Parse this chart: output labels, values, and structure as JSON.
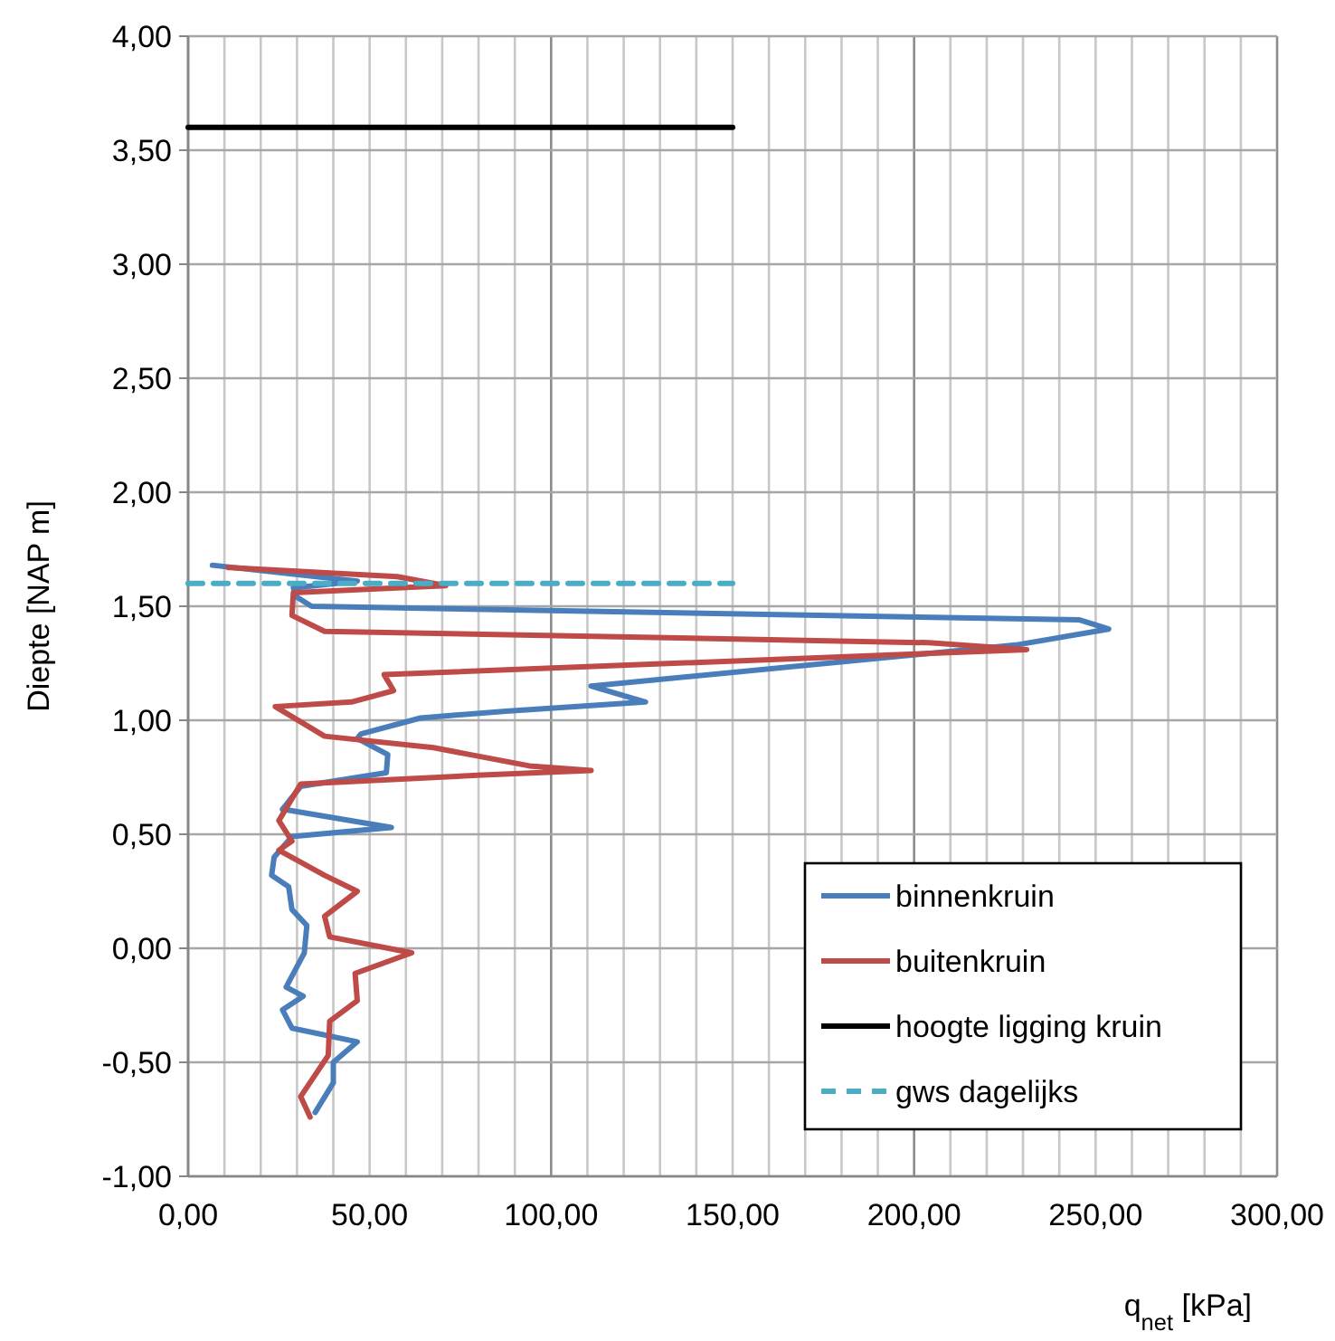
{
  "chart_data": {
    "type": "line",
    "xlabel": "q$_{net}$  [kPa]",
    "ylabel": "Diepte [NAP  m]",
    "xlim": [
      0,
      300
    ],
    "ylim": [
      -1,
      4
    ],
    "xticks": [
      {
        "value": 0,
        "label": "0,00"
      },
      {
        "value": 10,
        "label": null
      },
      {
        "value": 20,
        "label": null
      },
      {
        "value": 30,
        "label": null
      },
      {
        "value": 40,
        "label": null
      },
      {
        "value": 50,
        "label": "50,00"
      },
      {
        "value": 60,
        "label": null
      },
      {
        "value": 70,
        "label": null
      },
      {
        "value": 80,
        "label": null
      },
      {
        "value": 90,
        "label": null
      },
      {
        "value": 100,
        "label": "100,00"
      },
      {
        "value": 110,
        "label": null
      },
      {
        "value": 120,
        "label": null
      },
      {
        "value": 130,
        "label": null
      },
      {
        "value": 140,
        "label": null
      },
      {
        "value": 150,
        "label": "150,00"
      },
      {
        "value": 160,
        "label": null
      },
      {
        "value": 170,
        "label": null
      },
      {
        "value": 180,
        "label": null
      },
      {
        "value": 190,
        "label": null
      },
      {
        "value": 200,
        "label": "200,00"
      },
      {
        "value": 210,
        "label": null
      },
      {
        "value": 220,
        "label": null
      },
      {
        "value": 230,
        "label": null
      },
      {
        "value": 240,
        "label": null
      },
      {
        "value": 250,
        "label": "250,00"
      },
      {
        "value": 260,
        "label": null
      },
      {
        "value": 270,
        "label": null
      },
      {
        "value": 280,
        "label": null
      },
      {
        "value": 290,
        "label": null
      },
      {
        "value": 300,
        "label": "300,00"
      }
    ],
    "yticks": [
      {
        "value": -1,
        "label": "-1,00"
      },
      {
        "value": -0.5,
        "label": "-0,50"
      },
      {
        "value": 0,
        "label": "0,00"
      },
      {
        "value": 0.5,
        "label": "0,50"
      },
      {
        "value": 1,
        "label": "1,00"
      },
      {
        "value": 1.5,
        "label": "1,50"
      },
      {
        "value": 2,
        "label": "2,00"
      },
      {
        "value": 2.5,
        "label": "2,50"
      },
      {
        "value": 3,
        "label": "3,00"
      },
      {
        "value": 3.5,
        "label": "3,50"
      },
      {
        "value": 4,
        "label": "4,00"
      }
    ],
    "grid": true,
    "legend": "bottom right",
    "series": [
      {
        "name": "binnenkruin",
        "color": "#4a7ebb",
        "x": [
          6.7,
          46.6,
          29,
          30,
          34,
          245.6,
          253.6,
          228,
          111,
          126,
          87.5,
          64,
          47.6,
          46.6,
          55,
          54.6,
          31,
          26,
          56,
          28.6,
          23.7,
          23,
          27.7,
          28.6,
          32.7,
          32,
          27,
          31.7,
          26,
          28.6,
          46.6,
          40,
          40,
          35
        ],
        "values": [
          1.68,
          1.61,
          1.58,
          1.54,
          1.5,
          1.44,
          1.4,
          1.33,
          1.15,
          1.08,
          1.04,
          1.01,
          0.94,
          0.92,
          0.85,
          0.77,
          0.71,
          0.61,
          0.53,
          0.49,
          0.4,
          0.32,
          0.27,
          0.17,
          0.1,
          -0.02,
          -0.17,
          -0.21,
          -0.27,
          -0.35,
          -0.41,
          -0.5,
          -0.59,
          -0.72
        ]
      },
      {
        "name": "buitenkruin",
        "color": "#be4b48",
        "x": [
          11,
          57.6,
          71,
          29,
          28.6,
          37.6,
          204,
          231,
          54,
          56.6,
          45,
          24,
          37.6,
          67.6,
          94,
          111,
          81,
          31,
          25,
          28.6,
          25,
          37.6,
          46.6,
          37.6,
          39,
          61.6,
          46,
          46.6,
          39,
          38.6,
          31,
          33.6
        ],
        "values": [
          1.67,
          1.63,
          1.59,
          1.56,
          1.46,
          1.39,
          1.34,
          1.31,
          1.2,
          1.13,
          1.08,
          1.06,
          0.93,
          0.88,
          0.8,
          0.78,
          0.76,
          0.72,
          0.56,
          0.47,
          0.43,
          0.32,
          0.25,
          0.14,
          0.05,
          -0.02,
          -0.11,
          -0.23,
          -0.32,
          -0.47,
          -0.65,
          -0.74
        ]
      },
      {
        "name": "hoogte ligging kruin",
        "color": "#000000",
        "x": [
          0,
          150
        ],
        "values": [
          3.6,
          3.6
        ]
      },
      {
        "name": "gws dagelijks",
        "color": "#4bacc6",
        "line_style": "dashed",
        "x": [
          0,
          150
        ],
        "values": [
          1.6,
          1.6
        ]
      }
    ]
  }
}
